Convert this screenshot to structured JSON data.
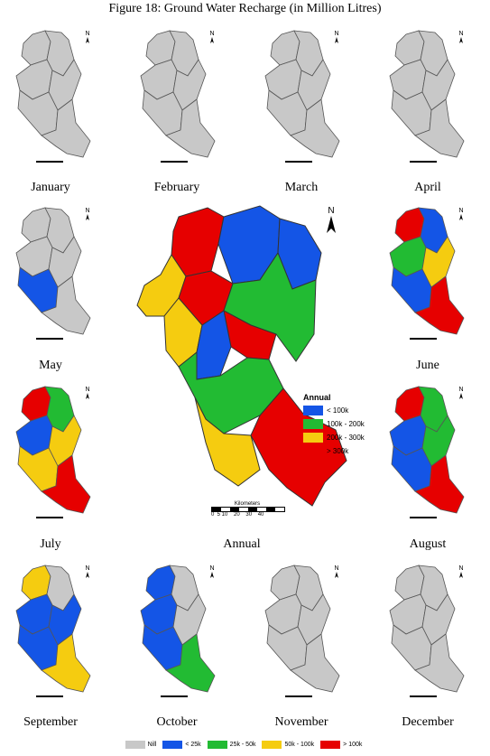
{
  "title": "Figure 18: Ground Water Recharge (in Million Litres)",
  "months": [
    {
      "label": "January",
      "colors": [
        "#c8c8c8",
        "#c8c8c8",
        "#c8c8c8",
        "#c8c8c8",
        "#c8c8c8",
        "#c8c8c8"
      ]
    },
    {
      "label": "February",
      "colors": [
        "#c8c8c8",
        "#c8c8c8",
        "#c8c8c8",
        "#c8c8c8",
        "#c8c8c8",
        "#c8c8c8"
      ]
    },
    {
      "label": "March",
      "colors": [
        "#c8c8c8",
        "#c8c8c8",
        "#c8c8c8",
        "#c8c8c8",
        "#c8c8c8",
        "#c8c8c8"
      ]
    },
    {
      "label": "April",
      "colors": [
        "#c8c8c8",
        "#c8c8c8",
        "#c8c8c8",
        "#c8c8c8",
        "#c8c8c8",
        "#c8c8c8"
      ]
    },
    {
      "label": "May",
      "colors": [
        "#c8c8c8",
        "#c8c8c8",
        "#c8c8c8",
        "#c8c8c8",
        "#1455e6",
        "#c8c8c8"
      ]
    },
    {
      "label": "June",
      "colors": [
        "#e60000",
        "#1455e6",
        "#22bb33",
        "#f5cc10",
        "#1455e6",
        "#e60000"
      ]
    },
    {
      "label": "July",
      "colors": [
        "#e60000",
        "#22bb33",
        "#1455e6",
        "#f5cc10",
        "#f5cc10",
        "#e60000"
      ]
    },
    {
      "label": "August",
      "colors": [
        "#e60000",
        "#22bb33",
        "#1455e6",
        "#22bb33",
        "#1455e6",
        "#e60000"
      ]
    },
    {
      "label": "September",
      "colors": [
        "#f5cc10",
        "#c8c8c8",
        "#1455e6",
        "#1455e6",
        "#1455e6",
        "#f5cc10"
      ]
    },
    {
      "label": "October",
      "colors": [
        "#1455e6",
        "#c8c8c8",
        "#1455e6",
        "#c8c8c8",
        "#1455e6",
        "#22bb33"
      ]
    },
    {
      "label": "November",
      "colors": [
        "#c8c8c8",
        "#c8c8c8",
        "#c8c8c8",
        "#c8c8c8",
        "#c8c8c8",
        "#c8c8c8"
      ]
    },
    {
      "label": "December",
      "colors": [
        "#c8c8c8",
        "#c8c8c8",
        "#c8c8c8",
        "#c8c8c8",
        "#c8c8c8",
        "#c8c8c8"
      ]
    }
  ],
  "annual": {
    "label": "Annual",
    "colors": [
      "#e60000",
      "#1455e6",
      "#1455e6",
      "#f5cc10",
      "#e60000",
      "#22bb33",
      "#f5cc10",
      "#e60000",
      "#1455e6",
      "#22bb33",
      "#f5cc10",
      "#e60000"
    ],
    "legend_title": "Annual",
    "legend": [
      {
        "label": "< 100k",
        "color": "#1455e6"
      },
      {
        "label": "100k - 200k",
        "color": "#22bb33"
      },
      {
        "label": "200k - 300k",
        "color": "#f5cc10"
      },
      {
        "label": "> 300k",
        "color": "#e60000"
      }
    ],
    "scale_label": "Kilometers",
    "scale_ticks": "0  5 10    20    30    40"
  },
  "monthly_legend": [
    {
      "label": "Nill",
      "color": "#c8c8c8"
    },
    {
      "label": "< 25k",
      "color": "#1455e6"
    },
    {
      "label": "25k - 50k",
      "color": "#22bb33"
    },
    {
      "label": "50k - 100k",
      "color": "#f5cc10"
    },
    {
      "label": "> 100k",
      "color": "#e60000"
    }
  ],
  "north_label": "N"
}
